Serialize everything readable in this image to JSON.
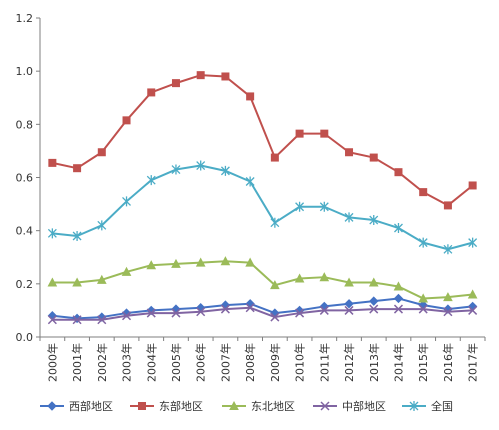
{
  "chart_data": {
    "type": "line",
    "title": "",
    "xlabel": "",
    "ylabel": "",
    "x": [
      "2000年",
      "2001年",
      "2002年",
      "2003年",
      "2004年",
      "2005年",
      "2006年",
      "2007年",
      "2008年",
      "2009年",
      "2010年",
      "2011年",
      "2012年",
      "2013年",
      "2014年",
      "2015年",
      "2016年",
      "2017年"
    ],
    "ylim": [
      0,
      1.2
    ],
    "yticks": [
      "0.0",
      "0.2",
      "0.4",
      "0.6",
      "0.8",
      "1.0",
      "1.2"
    ],
    "grid": false,
    "legend_position": "bottom",
    "series": [
      {
        "name": "西部地区",
        "color": "#4472C4",
        "marker": "diamond",
        "values": [
          0.08,
          0.07,
          0.075,
          0.09,
          0.1,
          0.105,
          0.11,
          0.12,
          0.125,
          0.09,
          0.1,
          0.115,
          0.125,
          0.135,
          0.145,
          0.12,
          0.105,
          0.115
        ]
      },
      {
        "name": "东部地区",
        "color": "#C0504D",
        "marker": "square",
        "values": [
          0.655,
          0.635,
          0.695,
          0.815,
          0.92,
          0.955,
          0.985,
          0.98,
          0.905,
          0.675,
          0.765,
          0.765,
          0.695,
          0.675,
          0.62,
          0.545,
          0.495,
          0.57
        ]
      },
      {
        "name": "东北地区",
        "color": "#9BBB59",
        "marker": "triangle",
        "values": [
          0.205,
          0.205,
          0.215,
          0.245,
          0.27,
          0.275,
          0.28,
          0.285,
          0.28,
          0.195,
          0.22,
          0.225,
          0.205,
          0.205,
          0.19,
          0.145,
          0.15,
          0.16
        ]
      },
      {
        "name": "中部地区",
        "color": "#8064A2",
        "marker": "x",
        "values": [
          0.065,
          0.065,
          0.065,
          0.08,
          0.09,
          0.09,
          0.095,
          0.105,
          0.11,
          0.075,
          0.09,
          0.1,
          0.1,
          0.105,
          0.105,
          0.105,
          0.095,
          0.1
        ]
      },
      {
        "name": "全国",
        "color": "#4BACC6",
        "marker": "star",
        "values": [
          0.39,
          0.38,
          0.42,
          0.51,
          0.59,
          0.63,
          0.645,
          0.625,
          0.585,
          0.43,
          0.49,
          0.49,
          0.45,
          0.44,
          0.41,
          0.355,
          0.33,
          0.355
        ]
      }
    ]
  }
}
